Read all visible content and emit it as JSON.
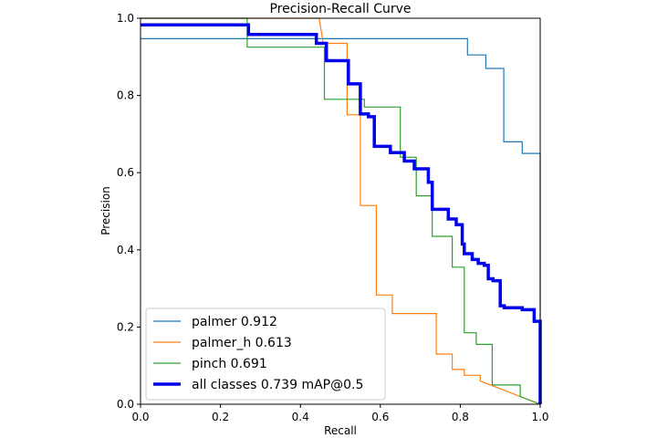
{
  "chart_data": {
    "type": "line",
    "title": "Precision-Recall Curve",
    "xlabel": "Recall",
    "ylabel": "Precision",
    "xlim": [
      0,
      1
    ],
    "ylim": [
      0,
      1
    ],
    "xticks": [
      "0.0",
      "0.2",
      "0.4",
      "0.6",
      "0.8",
      "1.0"
    ],
    "yticks": [
      "0.0",
      "0.2",
      "0.4",
      "0.6",
      "0.8",
      "1.0"
    ],
    "grid": false,
    "legend_position": "lower-left",
    "series": [
      {
        "name": "palmer 0.912",
        "color": "#1f77b4",
        "width": 1.2,
        "x": [
          0,
          0.267,
          0.267,
          0.818,
          0.818,
          0.864,
          0.864,
          0.909,
          0.909,
          0.955,
          0.955,
          1.0,
          1.0
        ],
        "y": [
          0.947,
          0.947,
          0.947,
          0.947,
          0.905,
          0.905,
          0.87,
          0.87,
          0.68,
          0.68,
          0.65,
          0.65,
          0.0
        ]
      },
      {
        "name": "palmer_h 0.613",
        "color": "#ff7f0e",
        "width": 1.2,
        "x": [
          0,
          0.447,
          0.447,
          0.457,
          0.457,
          0.517,
          0.517,
          0.55,
          0.55,
          0.59,
          0.59,
          0.63,
          0.63,
          0.74,
          0.74,
          0.78,
          0.78,
          0.81,
          0.81,
          0.85,
          0.85,
          1.0
        ],
        "y": [
          1.0,
          1.0,
          1.0,
          0.935,
          0.935,
          0.935,
          0.75,
          0.75,
          0.515,
          0.515,
          0.283,
          0.283,
          0.235,
          0.235,
          0.13,
          0.13,
          0.09,
          0.09,
          0.075,
          0.075,
          0.06,
          0.0
        ]
      },
      {
        "name": "pinch 0.691",
        "color": "#2ca02c",
        "width": 1.2,
        "x": [
          0,
          0.267,
          0.267,
          0.46,
          0.46,
          0.56,
          0.56,
          0.65,
          0.65,
          0.69,
          0.69,
          0.73,
          0.73,
          0.78,
          0.78,
          0.81,
          0.81,
          0.84,
          0.84,
          0.88,
          0.88,
          0.95,
          0.95,
          1.0
        ],
        "y": [
          1.0,
          1.0,
          0.925,
          0.925,
          0.79,
          0.79,
          0.77,
          0.77,
          0.64,
          0.64,
          0.54,
          0.54,
          0.435,
          0.435,
          0.355,
          0.355,
          0.185,
          0.185,
          0.155,
          0.155,
          0.05,
          0.05,
          0.02,
          0.0
        ]
      },
      {
        "name": "all classes 0.739 mAP@0.5",
        "color": "#0000ee",
        "width": 3.5,
        "x": [
          0,
          0.27,
          0.27,
          0.44,
          0.44,
          0.465,
          0.465,
          0.52,
          0.52,
          0.55,
          0.55,
          0.57,
          0.57,
          0.585,
          0.585,
          0.625,
          0.625,
          0.66,
          0.66,
          0.685,
          0.685,
          0.69,
          0.69,
          0.72,
          0.72,
          0.725,
          0.725,
          0.73,
          0.73,
          0.77,
          0.77,
          0.79,
          0.79,
          0.805,
          0.805,
          0.81,
          0.81,
          0.83,
          0.83,
          0.845,
          0.845,
          0.86,
          0.86,
          0.87,
          0.87,
          0.882,
          0.882,
          0.9,
          0.9,
          0.91,
          0.91,
          0.955,
          0.955,
          0.985,
          0.985,
          1.0,
          1.0
        ],
        "y": [
          0.983,
          0.983,
          0.958,
          0.958,
          0.935,
          0.935,
          0.89,
          0.89,
          0.83,
          0.83,
          0.752,
          0.752,
          0.745,
          0.745,
          0.668,
          0.668,
          0.652,
          0.652,
          0.63,
          0.63,
          0.61,
          0.61,
          0.61,
          0.61,
          0.575,
          0.575,
          0.575,
          0.575,
          0.505,
          0.505,
          0.48,
          0.48,
          0.465,
          0.465,
          0.415,
          0.415,
          0.39,
          0.39,
          0.375,
          0.375,
          0.365,
          0.365,
          0.36,
          0.36,
          0.325,
          0.325,
          0.32,
          0.32,
          0.255,
          0.255,
          0.25,
          0.25,
          0.245,
          0.245,
          0.215,
          0.215,
          0.0
        ]
      }
    ]
  }
}
